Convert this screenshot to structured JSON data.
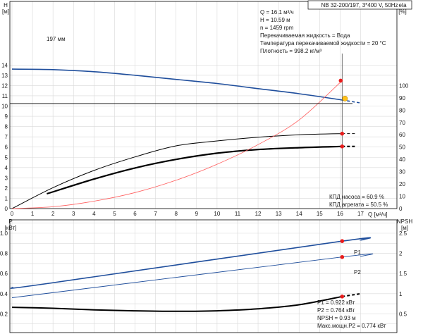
{
  "chart_data": [
    {
      "type": "line",
      "panel": "top",
      "title": "NB 32-200/197, 3*400 V, 50Hz",
      "xlabel": "Q [м³/ч]",
      "ylabel_left": "H [м]",
      "ylabel_right": "eta [%]",
      "xlim": [
        0,
        17
      ],
      "ylim_left": [
        0,
        15
      ],
      "ylim_right": [
        0,
        150
      ],
      "x_ticks": [
        0,
        1,
        2,
        3,
        4,
        5,
        6,
        7,
        8,
        9,
        10,
        11,
        12,
        13,
        14,
        15,
        16,
        17
      ],
      "y_ticks_left": [
        0,
        1,
        2,
        3,
        4,
        5,
        6,
        7,
        8,
        9,
        10,
        11,
        12,
        13,
        14
      ],
      "y_ticks_right": [
        0,
        10,
        20,
        30,
        40,
        50,
        60,
        70,
        80,
        90,
        100
      ],
      "grid": true,
      "series": [
        {
          "name": "197 мм",
          "axis": "left",
          "color": "#1f4e9c",
          "x": [
            0,
            2,
            4,
            6,
            8,
            10,
            12,
            14,
            16.1,
            17
          ],
          "y": [
            13.6,
            13.55,
            13.35,
            13.0,
            12.6,
            12.2,
            11.7,
            11.2,
            10.59,
            10.3
          ]
        },
        {
          "name": "",
          "axis": "right",
          "color": "#000000",
          "x": [
            0,
            2,
            4,
            6,
            8,
            10,
            12,
            14,
            16.1
          ],
          "y": [
            0,
            17,
            31,
            42,
            51,
            55,
            58,
            60,
            60.9
          ]
        },
        {
          "name": "",
          "axis": "right",
          "color": "#000000",
          "x": [
            1.7,
            4,
            6,
            8,
            10,
            12,
            14,
            16.1
          ],
          "y": [
            12,
            24,
            33,
            40,
            45,
            48,
            49.5,
            50.5
          ]
        },
        {
          "name": "",
          "axis": "right",
          "color": "#ff5c5c",
          "x": [
            0,
            2,
            4,
            6,
            8,
            10,
            12,
            14,
            16.1
          ],
          "y": [
            0,
            1.5,
            6,
            13,
            23,
            36,
            52,
            72,
            104
          ]
        }
      ],
      "operating_point": {
        "x": 16.1,
        "y": 10.59
      },
      "info_lines": [
        "Q = 16.1 м³/ч",
        "H = 10.59 м",
        "n = 1459 rpm",
        "Перекачиваемая жидкость = Вода",
        "Температура перекачиваемой жидкости = 20 °C",
        "Плотность = 998.2 кг/м³"
      ],
      "efficiency_labels": [
        "КПД насоса = 60.9 %",
        "КПД агрегата = 50.5 %"
      ]
    },
    {
      "type": "line",
      "panel": "bottom",
      "xlabel": "",
      "ylabel_left": "P [кВт]",
      "ylabel_right": "NPSH [м]",
      "xlim": [
        0,
        17
      ],
      "ylim_left": [
        0,
        1.2
      ],
      "ylim_right": [
        0,
        3
      ],
      "y_ticks_left": [
        0.2,
        0.4,
        0.6,
        0.8,
        1.0
      ],
      "y_ticks_right": [
        0.5,
        1,
        1.5,
        2,
        2.5
      ],
      "grid": true,
      "series": [
        {
          "name": "P1",
          "axis": "left",
          "color": "#1f4e9c",
          "x": [
            0,
            1.7,
            16.1,
            17
          ],
          "y": [
            0.46,
            0.5,
            0.922,
            0.93
          ]
        },
        {
          "name": "P2",
          "axis": "left",
          "color": "#1f4e9c",
          "x": [
            0,
            16.1,
            17
          ],
          "y": [
            0.36,
            0.764,
            0.77
          ]
        },
        {
          "name": "",
          "axis": "left",
          "color": "#000000",
          "x": [
            0,
            2,
            4,
            6,
            8,
            10,
            12,
            14,
            16.1,
            17
          ],
          "y": [
            0.265,
            0.255,
            0.24,
            0.23,
            0.225,
            0.23,
            0.25,
            0.29,
            0.372,
            0.4
          ]
        }
      ],
      "readouts": [
        "P1 = 0.922 кВт",
        "P2 = 0.764 кВт",
        "NPSH = 0.93 м",
        "Макс.мощн.P2 = 0.774 кВт"
      ]
    }
  ]
}
